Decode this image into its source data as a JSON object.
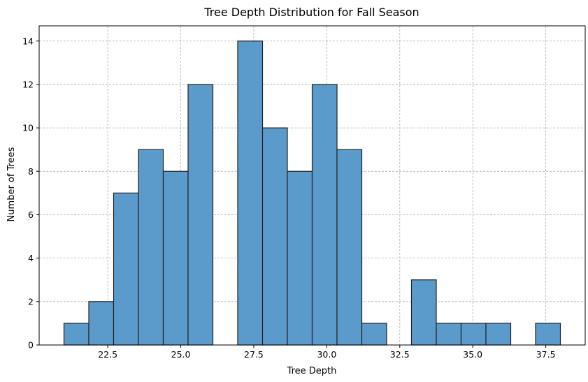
{
  "chart_data": {
    "type": "bar",
    "histogram": true,
    "title": "Tree Depth Distribution for Fall Season",
    "xlabel": "Tree Depth",
    "ylabel": "Number of Trees",
    "xlim": [
      20.15,
      38.85
    ],
    "ylim": [
      0,
      14.7
    ],
    "xticks": [
      22.5,
      25.0,
      27.5,
      30.0,
      32.5,
      35.0,
      37.5
    ],
    "xtick_labels": [
      "22.5",
      "25.0",
      "27.5",
      "30.0",
      "32.5",
      "35.0",
      "37.5"
    ],
    "yticks": [
      0,
      2,
      4,
      6,
      8,
      10,
      12,
      14
    ],
    "ytick_labels": [
      "0",
      "2",
      "4",
      "6",
      "8",
      "10",
      "12",
      "14"
    ],
    "bin_edges": [
      21.0,
      21.85,
      22.7,
      23.55,
      24.4,
      25.25,
      26.1,
      26.95,
      27.8,
      28.65,
      29.5,
      30.35,
      31.2,
      32.05,
      32.9,
      33.75,
      34.6,
      35.45,
      36.3,
      37.15,
      38.0
    ],
    "values": [
      1,
      2,
      7,
      9,
      8,
      12,
      0,
      14,
      10,
      8,
      12,
      9,
      1,
      0,
      3,
      1,
      1,
      1,
      0,
      1
    ],
    "grid": true,
    "bar_color": "#5b9bcc",
    "edge_color": "#222222"
  }
}
